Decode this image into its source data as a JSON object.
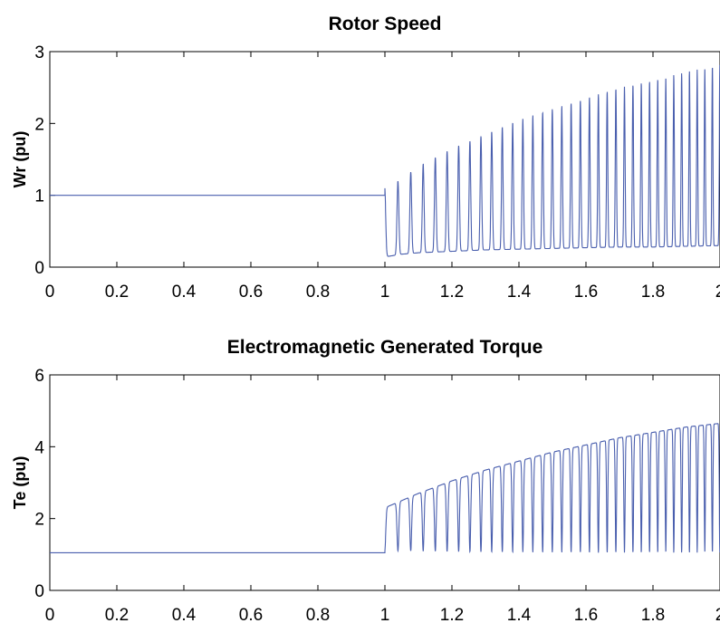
{
  "chart_data": [
    {
      "type": "line",
      "title": "Rotor Speed",
      "xlabel": "",
      "ylabel": "Wr (pu)",
      "xlim": [
        0,
        2
      ],
      "ylim": [
        0,
        3
      ],
      "xticks": [
        "0",
        "0.2",
        "0.4",
        "0.6",
        "0.8",
        "1",
        "1.2",
        "1.4",
        "1.6",
        "1.8",
        "2"
      ],
      "yticks": [
        "0",
        "1",
        "2",
        "3"
      ],
      "grid": false,
      "color": "#4a5fae",
      "series": [
        {
          "x": [
            0,
            0.2,
            0.4,
            0.6,
            0.8,
            0.99,
            1.0,
            1.0,
            1.01,
            1.05,
            1.1,
            1.2,
            1.3,
            1.4,
            1.5,
            1.6,
            1.7,
            1.8,
            1.9,
            2.0
          ],
          "y": [
            1,
            1,
            1,
            1,
            1,
            1,
            1,
            0.15,
            0.15,
            0.18,
            0.2,
            0.22,
            0.24,
            0.25,
            0.26,
            0.27,
            0.28,
            0.28,
            0.29,
            0.3
          ],
          "peak_envelope": {
            "x": [
              1.01,
              1.1,
              1.2,
              1.3,
              1.4,
              1.5,
              1.6,
              1.7,
              1.8,
              1.9,
              2.0
            ],
            "y": [
              1.1,
              1.4,
              1.65,
              1.85,
              2.05,
              2.2,
              2.35,
              2.5,
              2.6,
              2.72,
              2.82
            ]
          }
        }
      ]
    },
    {
      "type": "line",
      "title": "Electromagnetic Generated Torque",
      "xlabel": "",
      "ylabel": "Te (pu)",
      "xlim": [
        0,
        2
      ],
      "ylim": [
        0,
        6
      ],
      "xticks": [
        "0",
        "0.2",
        "0.4",
        "0.6",
        "0.8",
        "1",
        "1.2",
        "1.4",
        "1.6",
        "1.8",
        "2"
      ],
      "yticks": [
        "0",
        "2",
        "4",
        "6"
      ],
      "grid": false,
      "color": "#4a5fae",
      "series": [
        {
          "x": [
            0,
            0.2,
            0.4,
            0.6,
            0.8,
            0.99,
            1.0,
            1.0,
            1.1,
            1.2,
            1.3,
            1.4,
            1.5,
            1.6,
            1.7,
            1.8,
            1.9,
            2.0
          ],
          "y": [
            1.05,
            1.05,
            1.05,
            1.05,
            1.05,
            1.05,
            1.05,
            2.3,
            2.7,
            3.05,
            3.35,
            3.6,
            3.85,
            4.05,
            4.25,
            4.4,
            4.55,
            4.65
          ],
          "trough_envelope": {
            "x": [
              1.0,
              1.1,
              1.2,
              1.3,
              1.4,
              1.5,
              1.6,
              1.7,
              1.8,
              1.9,
              2.0
            ],
            "y": [
              1.1,
              1.1,
              1.08,
              1.07,
              1.06,
              1.06,
              1.05,
              1.05,
              1.05,
              1.05,
              1.05
            ]
          }
        }
      ]
    }
  ]
}
